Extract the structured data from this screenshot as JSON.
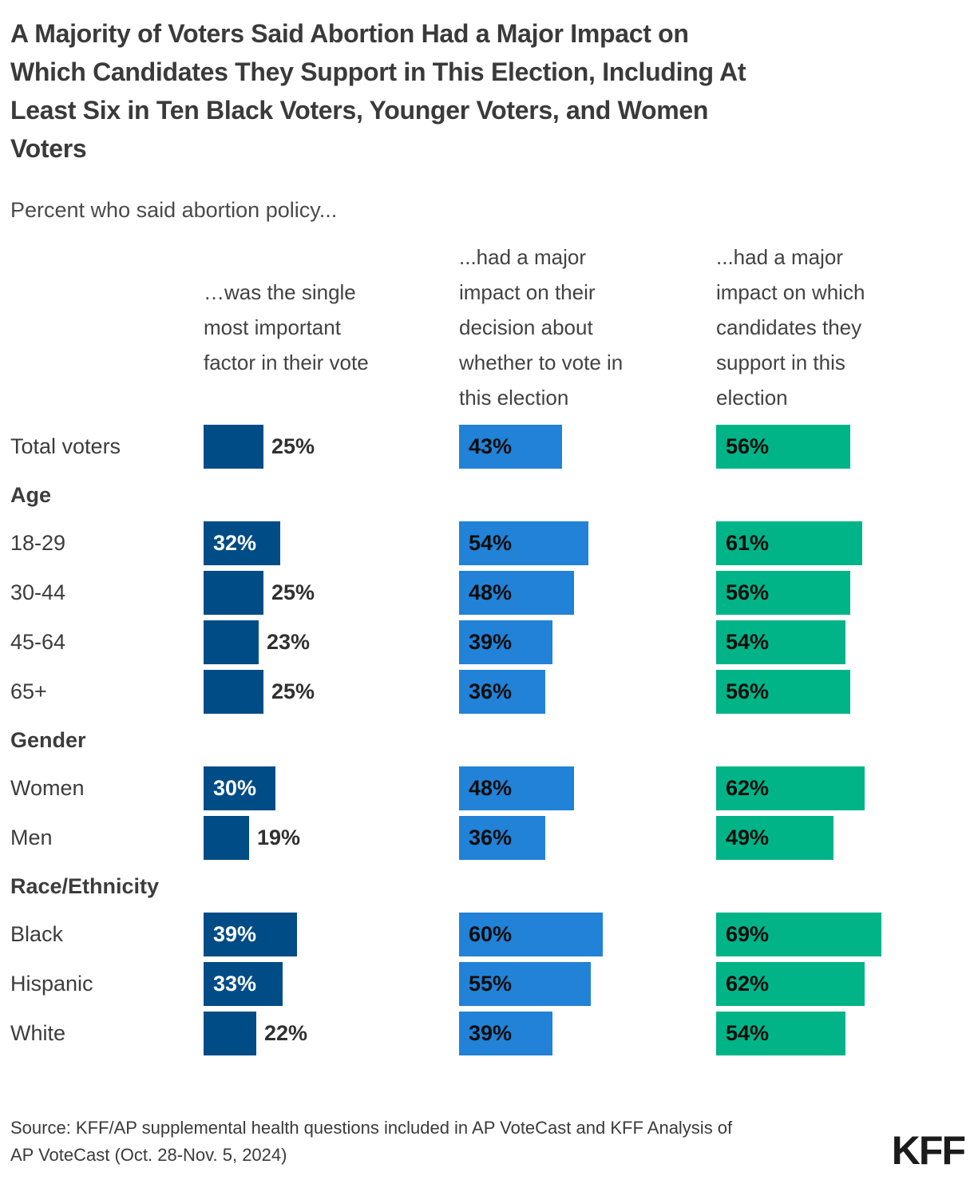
{
  "chart_data": {
    "type": "bar",
    "orientation": "horizontal",
    "value_unit": "%",
    "title": "A Majority of Voters Said Abortion Had a Major Impact on\nWhich Candidates They Support in This Election, Including At\nLeast Six in Ten Black Voters, Younger Voters, and Women\nVoters",
    "subtitle": "Percent who said abortion policy...",
    "series": [
      {
        "name": "…was the single\nmost important\nfactor in their vote",
        "color": "#004c87"
      },
      {
        "name": "...had a major\nimpact on their\ndecision about\nwhether to vote in\nthis election",
        "color": "#2182d7"
      },
      {
        "name": "...had a major\nimpact on which\ncandidates they\nsupport in this\nelection",
        "color": "#00b488"
      }
    ],
    "rows": [
      {
        "kind": "data",
        "label": "Total voters",
        "values": [
          25,
          43,
          56
        ]
      },
      {
        "kind": "section",
        "label": "Age"
      },
      {
        "kind": "data",
        "label": "18-29",
        "values": [
          32,
          54,
          61
        ]
      },
      {
        "kind": "data",
        "label": "30-44",
        "values": [
          25,
          48,
          56
        ]
      },
      {
        "kind": "data",
        "label": "45-64",
        "values": [
          23,
          39,
          54
        ]
      },
      {
        "kind": "data",
        "label": "65+",
        "values": [
          25,
          36,
          56
        ]
      },
      {
        "kind": "section",
        "label": "Gender"
      },
      {
        "kind": "data",
        "label": "Women",
        "values": [
          30,
          48,
          62
        ]
      },
      {
        "kind": "data",
        "label": "Men",
        "values": [
          19,
          36,
          49
        ]
      },
      {
        "kind": "section",
        "label": "Race/Ethnicity"
      },
      {
        "kind": "data",
        "label": "Black",
        "values": [
          39,
          60,
          69
        ]
      },
      {
        "kind": "data",
        "label": "Hispanic",
        "values": [
          33,
          55,
          62
        ]
      },
      {
        "kind": "data",
        "label": "White",
        "values": [
          22,
          39,
          54
        ]
      }
    ],
    "legend_position": "column-headers-top",
    "grid": false
  },
  "footer": {
    "source": "Source: KFF/AP supplemental health questions included in AP VoteCast and KFF Analysis of\nAP VoteCast (Oct. 28-Nov. 5, 2024)",
    "logo_text": "KFF"
  },
  "colors": {
    "series_dark_blue": "#004c87",
    "series_blue": "#2182d7",
    "series_green": "#00b488",
    "title_text": "#3a3a3a",
    "body_text": "#3c3c3c",
    "logo_text": "#1b1b1b",
    "background": "#ffffff"
  }
}
